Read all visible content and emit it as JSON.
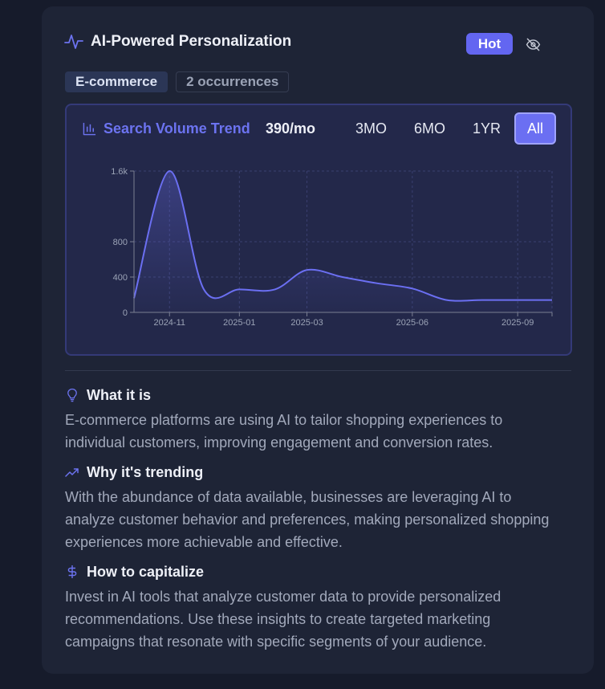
{
  "card": {
    "title": "AI-Powered Personalization",
    "badge": "Hot",
    "category": "E-commerce",
    "occurrences": "2 occurrences"
  },
  "chart": {
    "title": "Search Volume Trend",
    "volume": "390/mo",
    "ranges": [
      "3MO",
      "6MO",
      "1YR",
      "All"
    ],
    "active_range": "All"
  },
  "chart_data": {
    "type": "area",
    "title": "",
    "xlabel": "",
    "ylabel": "",
    "x_ticks": [
      "2024-11",
      "2025-01",
      "2025-03",
      "2025-06",
      "2025-09"
    ],
    "y_ticks": [
      "0",
      "400",
      "800",
      "1.6k"
    ],
    "ylim": [
      0,
      1600
    ],
    "x": [
      "2024-10-01",
      "2024-11-01",
      "2024-12-01",
      "2025-01-01",
      "2025-02-01",
      "2025-03-01",
      "2025-04-01",
      "2025-05-01",
      "2025-06-01",
      "2025-07-01",
      "2025-08-01",
      "2025-09-01",
      "2025-10-01"
    ],
    "values": [
      160,
      1600,
      260,
      260,
      260,
      480,
      400,
      330,
      270,
      140,
      140,
      140,
      140
    ],
    "grid": true,
    "accent": "#6b6ff2"
  },
  "sections": [
    {
      "icon": "lightbulb-icon",
      "title": "What it is",
      "body": "E-commerce platforms are using AI to tailor shopping experiences to individual customers, improving engagement and conversion rates."
    },
    {
      "icon": "trending-up-icon",
      "title": "Why it's trending",
      "body": "With the abundance of data available, businesses are leveraging AI to analyze customer behavior and preferences, making personalized shopping experiences more achievable and effective."
    },
    {
      "icon": "dollar-icon",
      "title": "How to capitalize",
      "body": "Invest in AI tools that analyze customer data to provide personalized recommendations. Use these insights to create targeted marketing campaigns that resonate with specific segments of your audience."
    }
  ]
}
